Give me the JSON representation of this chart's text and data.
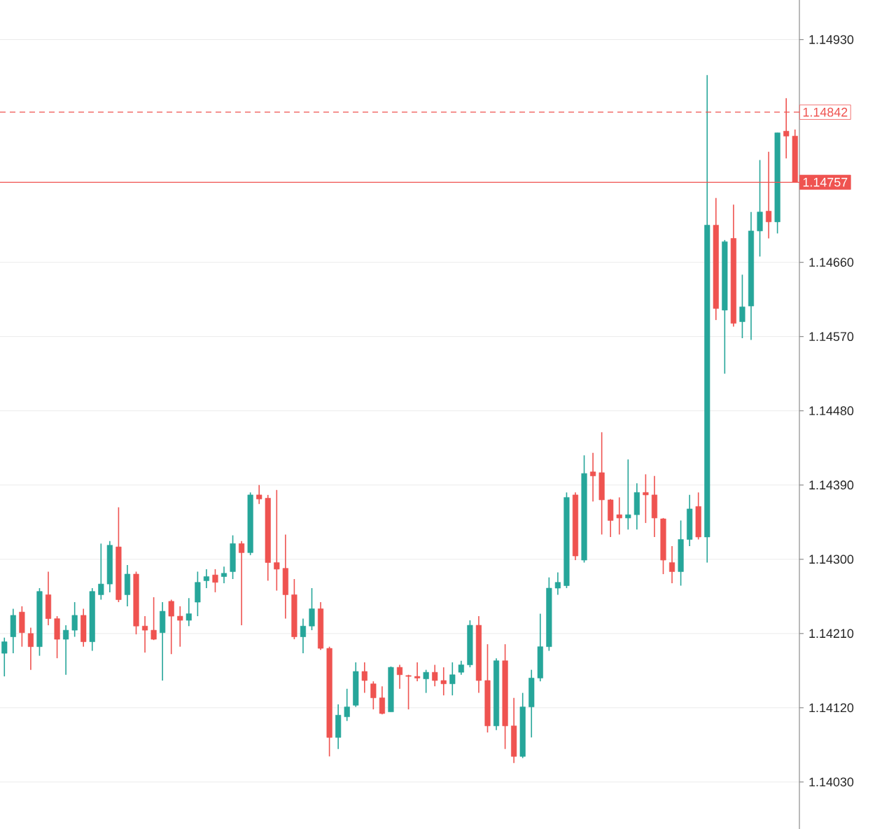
{
  "chart_data": {
    "type": "candlestick",
    "categories": [
      null,
      null,
      null,
      null,
      null,
      null,
      null,
      null,
      null,
      null,
      null,
      null,
      null,
      null,
      null,
      null,
      null,
      null,
      null,
      null,
      null,
      null,
      null,
      null,
      null,
      null,
      null,
      null,
      null,
      null,
      null,
      null,
      null,
      null,
      null,
      null,
      null,
      null,
      null,
      null,
      null,
      null,
      null,
      null,
      null,
      null,
      null,
      null,
      null,
      null,
      null,
      null,
      null,
      null,
      null,
      null,
      null,
      null,
      null,
      null,
      null,
      null,
      null,
      null,
      null,
      null,
      null,
      null,
      null,
      null,
      null,
      null,
      null,
      null,
      null,
      null,
      null,
      null,
      null,
      null,
      null,
      null,
      null,
      null,
      null,
      null,
      null,
      null,
      null,
      null,
      null
    ],
    "ohlc": [
      [
        1.14186,
        1.14205,
        1.14158,
        1.142
      ],
      [
        1.14206,
        1.1424,
        1.14186,
        1.14232
      ],
      [
        1.14236,
        1.14243,
        1.14194,
        1.14211
      ],
      [
        1.1421,
        1.14217,
        1.14166,
        1.14194
      ],
      [
        1.14194,
        1.14265,
        1.14183,
        1.14261
      ],
      [
        1.14257,
        1.14285,
        1.1422,
        1.14228
      ],
      [
        1.14228,
        1.14231,
        1.1418,
        1.14203
      ],
      [
        1.14203,
        1.1422,
        1.1416,
        1.14214
      ],
      [
        1.14214,
        1.14248,
        1.14206,
        1.14232
      ],
      [
        1.14232,
        1.1424,
        1.14194,
        1.142
      ],
      [
        1.142,
        1.14265,
        1.14189,
        1.14261
      ],
      [
        1.14257,
        1.14319,
        1.14251,
        1.1427
      ],
      [
        1.1427,
        1.14322,
        1.1426,
        1.14317
      ],
      [
        1.14315,
        1.14363,
        1.14248,
        1.14251
      ],
      [
        1.14257,
        1.14293,
        1.14243,
        1.14282
      ],
      [
        1.14282,
        1.14285,
        1.14209,
        1.14219
      ],
      [
        1.14219,
        1.14231,
        1.14187,
        1.14214
      ],
      [
        1.14214,
        1.14254,
        1.14202,
        1.14203
      ],
      [
        1.14211,
        1.14248,
        1.14153,
        1.14237
      ],
      [
        1.14249,
        1.14251,
        1.14185,
        1.14231
      ],
      [
        1.14231,
        1.14243,
        1.14194,
        1.14226
      ],
      [
        1.14226,
        1.14253,
        1.14219,
        1.14234
      ],
      [
        1.14248,
        1.14285,
        1.14231,
        1.14272
      ],
      [
        1.14274,
        1.14288,
        1.14265,
        1.14279
      ],
      [
        1.14281,
        1.14288,
        1.1426,
        1.14272
      ],
      [
        1.14279,
        1.14291,
        1.14271,
        1.14283
      ],
      [
        1.14285,
        1.14329,
        1.14276,
        1.14319
      ],
      [
        1.14319,
        1.14322,
        1.1422,
        1.14308
      ],
      [
        1.14308,
        1.14381,
        1.14305,
        1.14378
      ],
      [
        1.14378,
        1.1439,
        1.14367,
        1.14373
      ],
      [
        1.14374,
        1.14378,
        1.14274,
        1.14296
      ],
      [
        1.14296,
        1.14384,
        1.14262,
        1.14288
      ],
      [
        1.14289,
        1.1433,
        1.14228,
        1.14257
      ],
      [
        1.14257,
        1.14276,
        1.14203,
        1.14206
      ],
      [
        1.14206,
        1.14228,
        1.14186,
        1.14219
      ],
      [
        1.14219,
        1.14265,
        1.14214,
        1.1424
      ],
      [
        1.1424,
        1.14248,
        1.1419,
        1.14192
      ],
      [
        1.14192,
        1.14194,
        1.14061,
        1.14084
      ],
      [
        1.14084,
        1.14124,
        1.1407,
        1.14111
      ],
      [
        1.14109,
        1.14143,
        1.14104,
        1.14121
      ],
      [
        1.14123,
        1.14175,
        1.14121,
        1.14164
      ],
      [
        1.14164,
        1.14175,
        1.14138,
        1.14153
      ],
      [
        1.14149,
        1.14152,
        1.14118,
        1.14132
      ],
      [
        1.14132,
        1.14146,
        1.14112,
        1.14113
      ],
      [
        1.14115,
        1.1417,
        1.14115,
        1.14169
      ],
      [
        1.14169,
        1.14172,
        1.14143,
        1.1416
      ],
      [
        1.14159,
        1.1416,
        1.14118,
        1.14158
      ],
      [
        1.14158,
        1.14175,
        1.14152,
        1.14156
      ],
      [
        1.14155,
        1.14166,
        1.14138,
        1.14163
      ],
      [
        1.14163,
        1.14172,
        1.14146,
        1.14153
      ],
      [
        1.14153,
        1.14169,
        1.14135,
        1.14149
      ],
      [
        1.14149,
        1.14175,
        1.14135,
        1.1416
      ],
      [
        1.14163,
        1.14177,
        1.1416,
        1.14172
      ],
      [
        1.14172,
        1.14226,
        1.14169,
        1.1422
      ],
      [
        1.1422,
        1.14231,
        1.14138,
        1.14153
      ],
      [
        1.14153,
        1.14197,
        1.1409,
        1.14098
      ],
      [
        1.14098,
        1.1418,
        1.14093,
        1.14177
      ],
      [
        1.14177,
        1.14197,
        1.1407,
        1.14098
      ],
      [
        1.14098,
        1.14132,
        1.14053,
        1.14061
      ],
      [
        1.14061,
        1.14138,
        1.14059,
        1.14121
      ],
      [
        1.14121,
        1.14166,
        1.14084,
        1.14156
      ],
      [
        1.14156,
        1.14234,
        1.14152,
        1.14194
      ],
      [
        1.14194,
        1.14278,
        1.14189,
        1.14265
      ],
      [
        1.14265,
        1.14284,
        1.14257,
        1.14272
      ],
      [
        1.14268,
        1.14381,
        1.14265,
        1.14375
      ],
      [
        1.14378,
        1.14381,
        1.14299,
        1.14304
      ],
      [
        1.14299,
        1.14426,
        1.14296,
        1.14404
      ],
      [
        1.14406,
        1.14429,
        1.1437,
        1.14401
      ],
      [
        1.14405,
        1.14454,
        1.1433,
        1.14372
      ],
      [
        1.14372,
        1.14373,
        1.14327,
        1.14347
      ],
      [
        1.14354,
        1.14375,
        1.1433,
        1.1435
      ],
      [
        1.1435,
        1.14421,
        1.14336,
        1.14354
      ],
      [
        1.14354,
        1.14392,
        1.14336,
        1.14381
      ],
      [
        1.14381,
        1.14403,
        1.14344,
        1.14378
      ],
      [
        1.14378,
        1.14401,
        1.14327,
        1.1435
      ],
      [
        1.14349,
        1.1435,
        1.14282,
        1.14299
      ],
      [
        1.14296,
        1.14316,
        1.14271,
        1.14285
      ],
      [
        1.14285,
        1.14347,
        1.14268,
        1.14324
      ],
      [
        1.14324,
        1.14378,
        1.14316,
        1.14361
      ],
      [
        1.14364,
        1.14381,
        1.14324,
        1.14327
      ],
      [
        1.14327,
        1.14887,
        1.14296,
        1.14705
      ],
      [
        1.14705,
        1.14738,
        1.1459,
        1.14604
      ],
      [
        1.14602,
        1.14687,
        1.14525,
        1.14685
      ],
      [
        1.14689,
        1.1473,
        1.14582,
        1.14586
      ],
      [
        1.14588,
        1.14645,
        1.14568,
        1.14606
      ],
      [
        1.14607,
        1.14721,
        1.14566,
        1.14698
      ],
      [
        1.14698,
        1.14784,
        1.14667,
        1.14721
      ],
      [
        1.14722,
        1.14794,
        1.14689,
        1.14709
      ],
      [
        1.14709,
        1.14817,
        1.14695,
        1.14817
      ],
      [
        1.14819,
        1.14859,
        1.14786,
        1.14813
      ],
      [
        1.14813,
        1.14821,
        1.14757,
        1.14757
      ]
    ],
    "colors": [
      "#26a69a",
      "#26a69a",
      "#ef5350",
      "#ef5350",
      "#26a69a",
      "#ef5350",
      "#ef5350",
      "#26a69a",
      "#26a69a",
      "#ef5350",
      "#26a69a",
      "#26a69a",
      "#26a69a",
      "#ef5350",
      "#26a69a",
      "#ef5350",
      "#ef5350",
      "#ef5350",
      "#26a69a",
      "#ef5350",
      "#ef5350",
      "#26a69a",
      "#26a69a",
      "#26a69a",
      "#ef5350",
      "#26a69a",
      "#26a69a",
      "#ef5350",
      "#26a69a",
      "#ef5350",
      "#ef5350",
      "#ef5350",
      "#ef5350",
      "#ef5350",
      "#26a69a",
      "#26a69a",
      "#ef5350",
      "#ef5350",
      "#26a69a",
      "#26a69a",
      "#26a69a",
      "#ef5350",
      "#ef5350",
      "#ef5350",
      "#26a69a",
      "#ef5350",
      "#ef5350",
      "#ef5350",
      "#26a69a",
      "#ef5350",
      "#ef5350",
      "#26a69a",
      "#26a69a",
      "#26a69a",
      "#ef5350",
      "#ef5350",
      "#26a69a",
      "#ef5350",
      "#ef5350",
      "#26a69a",
      "#26a69a",
      "#26a69a",
      "#26a69a",
      "#26a69a",
      "#26a69a",
      "#ef5350",
      "#26a69a",
      "#ef5350",
      "#ef5350",
      "#ef5350",
      "#ef5350",
      "#26a69a",
      "#26a69a",
      "#ef5350",
      "#ef5350",
      "#ef5350",
      "#ef5350",
      "#26a69a",
      "#26a69a",
      "#ef5350",
      "#26a69a",
      "#ef5350",
      "#26a69a",
      "#ef5350",
      "#26a69a",
      "#26a69a",
      "#26a69a",
      "#ef5350",
      "#26a69a",
      "#ef5350",
      "#ef5350"
    ],
    "ylim": [
      1.13973,
      1.14978
    ],
    "yticks": [
      {
        "value": 1.1403,
        "label": "1.14030"
      },
      {
        "value": 1.1412,
        "label": "1.14120"
      },
      {
        "value": 1.1421,
        "label": "1.14210"
      },
      {
        "value": 1.143,
        "label": "1.14300"
      },
      {
        "value": 1.1439,
        "label": "1.14390"
      },
      {
        "value": 1.1448,
        "label": "1.14480"
      },
      {
        "value": 1.1457,
        "label": "1.14570"
      },
      {
        "value": 1.1466,
        "label": "1.14660"
      },
      {
        "value": 1.1493,
        "label": "1.14930"
      }
    ],
    "ref_lines": [
      {
        "axis": "y",
        "value": 1.14842,
        "label": "1.14842",
        "color": "#ef5350",
        "line_style": "dashed"
      },
      {
        "axis": "y",
        "value": 1.14757,
        "label": "1.14757",
        "color": "#ef5350",
        "line_style": "solid"
      }
    ],
    "grid": "y",
    "tick_labels": "y"
  }
}
